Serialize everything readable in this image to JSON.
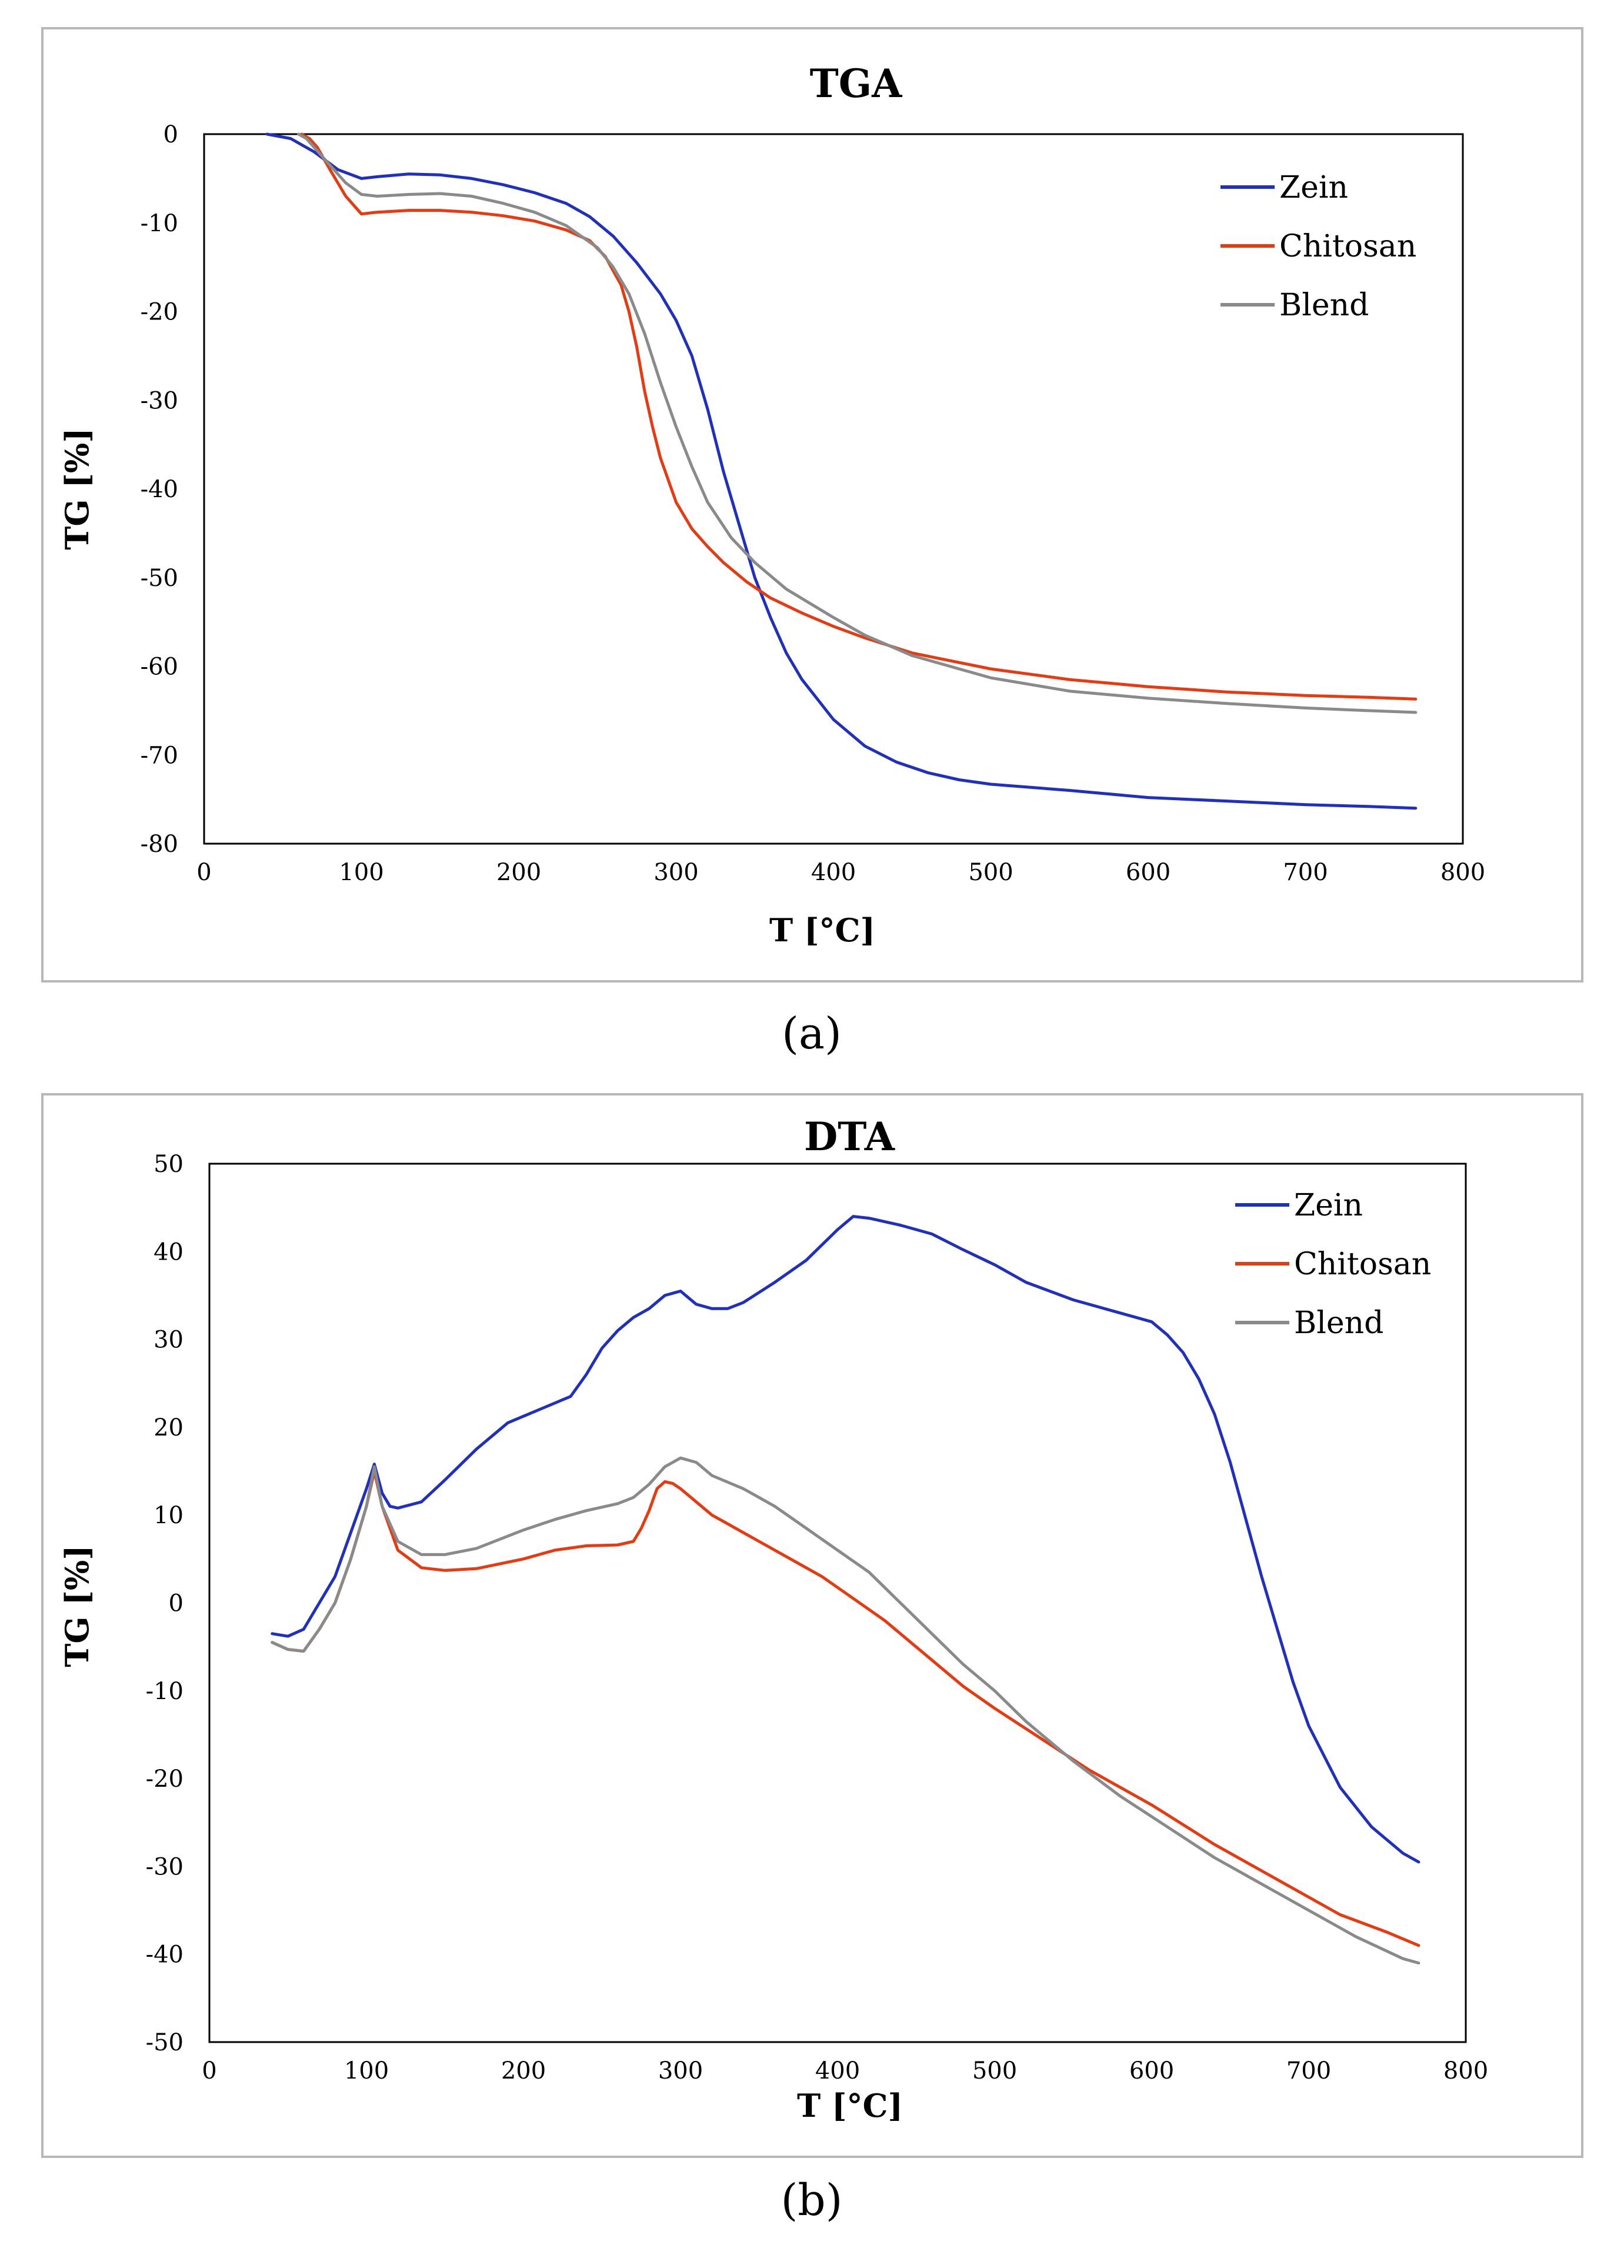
{
  "chart_data": [
    {
      "type": "line",
      "title": "TGA",
      "xlabel": "T [°C]",
      "ylabel": "TG [%]",
      "caption": "(a)",
      "xlim": [
        0,
        800
      ],
      "ylim": [
        -80,
        0
      ],
      "xticks": [
        0,
        100,
        200,
        300,
        400,
        500,
        600,
        700,
        800
      ],
      "yticks": [
        0,
        -10,
        -20,
        -30,
        -40,
        -50,
        -60,
        -70,
        -80
      ],
      "legend_position": "top-right",
      "series": [
        {
          "name": "Zein",
          "color": "#1f2fbf",
          "x": [
            40,
            55,
            70,
            85,
            100,
            110,
            130,
            150,
            170,
            190,
            210,
            230,
            245,
            260,
            275,
            290,
            300,
            310,
            320,
            330,
            340,
            350,
            360,
            370,
            380,
            400,
            420,
            440,
            460,
            480,
            500,
            550,
            600,
            650,
            700,
            740,
            770
          ],
          "y": [
            0,
            -0.5,
            -2,
            -4,
            -5,
            -4.8,
            -4.5,
            -4.6,
            -5,
            -5.7,
            -6.6,
            -7.8,
            -9.3,
            -11.5,
            -14.5,
            -18,
            -21,
            -25,
            -31,
            -38,
            -44,
            -50,
            -54.5,
            -58.5,
            -61.5,
            -66,
            -69,
            -70.8,
            -72,
            -72.8,
            -73.3,
            -74,
            -74.8,
            -75.2,
            -75.6,
            -75.8,
            -76
          ]
        },
        {
          "name": "Chitosan",
          "color": "#e83a10",
          "x": [
            62,
            67,
            72,
            80,
            90,
            100,
            110,
            130,
            150,
            170,
            190,
            210,
            230,
            245,
            255,
            265,
            270,
            275,
            280,
            285,
            290,
            300,
            310,
            320,
            330,
            345,
            360,
            380,
            400,
            420,
            450,
            500,
            550,
            600,
            650,
            700,
            740,
            770
          ],
          "y": [
            0,
            -0.5,
            -1.5,
            -4,
            -7,
            -9,
            -8.8,
            -8.6,
            -8.6,
            -8.8,
            -9.2,
            -9.8,
            -10.8,
            -12,
            -13.8,
            -17,
            -20,
            -24,
            -29,
            -33,
            -36.5,
            -41.5,
            -44.5,
            -46.5,
            -48.3,
            -50.5,
            -52.3,
            -54,
            -55.5,
            -56.8,
            -58.5,
            -60.3,
            -61.5,
            -62.3,
            -62.9,
            -63.3,
            -63.5,
            -63.7
          ]
        },
        {
          "name": "Blend",
          "color": "#8a8a8a",
          "x": [
            60,
            65,
            70,
            80,
            90,
            100,
            110,
            130,
            150,
            170,
            190,
            210,
            230,
            250,
            260,
            270,
            280,
            290,
            300,
            310,
            320,
            335,
            350,
            370,
            400,
            420,
            450,
            500,
            550,
            600,
            650,
            700,
            740,
            770
          ],
          "y": [
            0,
            -0.5,
            -1.5,
            -3.5,
            -5.5,
            -6.8,
            -7,
            -6.8,
            -6.7,
            -7,
            -7.8,
            -8.8,
            -10.3,
            -12.8,
            -15,
            -18,
            -22.5,
            -28,
            -33,
            -37.5,
            -41.5,
            -45.5,
            -48.3,
            -51.3,
            -54.5,
            -56.5,
            -58.8,
            -61.3,
            -62.8,
            -63.6,
            -64.2,
            -64.7,
            -65,
            -65.2
          ]
        }
      ]
    },
    {
      "type": "line",
      "title": "DTA",
      "xlabel": "T [°C]",
      "ylabel": "TG [%]",
      "caption": "(b)",
      "xlim": [
        0,
        800
      ],
      "ylim": [
        -50,
        50
      ],
      "xticks": [
        0,
        100,
        200,
        300,
        400,
        500,
        600,
        700,
        800
      ],
      "yticks": [
        50,
        40,
        30,
        20,
        10,
        0,
        -10,
        -20,
        -30,
        -40,
        -50
      ],
      "legend_position": "top-right",
      "series": [
        {
          "name": "Zein",
          "color": "#1f2fbf",
          "x": [
            40,
            50,
            60,
            70,
            80,
            90,
            100,
            105,
            110,
            115,
            120,
            135,
            150,
            170,
            190,
            210,
            230,
            240,
            250,
            260,
            270,
            280,
            290,
            300,
            310,
            320,
            330,
            340,
            360,
            380,
            400,
            410,
            420,
            440,
            460,
            480,
            500,
            520,
            550,
            580,
            600,
            610,
            620,
            630,
            640,
            650,
            660,
            670,
            680,
            690,
            700,
            720,
            740,
            760,
            770
          ],
          "y": [
            -3.5,
            -3.8,
            -3,
            0,
            3,
            8,
            13,
            15.8,
            12.5,
            11,
            10.8,
            11.5,
            14,
            17.5,
            20.5,
            22,
            23.5,
            26,
            29,
            31,
            32.5,
            33.5,
            35,
            35.5,
            34,
            33.5,
            33.5,
            34.2,
            36.5,
            39,
            42.5,
            44,
            43.8,
            43,
            42,
            40.2,
            38.5,
            36.5,
            34.5,
            33,
            32,
            30.5,
            28.5,
            25.5,
            21.5,
            16,
            9.5,
            3,
            -3,
            -9,
            -14,
            -21,
            -25.5,
            -28.5,
            -29.5
          ]
        },
        {
          "name": "Chitosan",
          "color": "#e83a10",
          "x": [
            40,
            50,
            60,
            70,
            80,
            90,
            100,
            105,
            110,
            120,
            135,
            150,
            170,
            200,
            220,
            240,
            260,
            270,
            275,
            280,
            285,
            290,
            295,
            300,
            310,
            320,
            330,
            350,
            370,
            390,
            410,
            430,
            450,
            480,
            500,
            530,
            560,
            600,
            640,
            680,
            720,
            750,
            770
          ],
          "y": [
            -4.5,
            -5.3,
            -5.5,
            -3,
            0,
            5,
            11,
            15,
            11,
            6,
            4,
            3.7,
            3.9,
            5,
            6,
            6.5,
            6.6,
            7,
            8.5,
            10.5,
            13,
            13.8,
            13.6,
            13,
            11.5,
            10,
            9,
            7,
            5,
            3,
            0.5,
            -2,
            -5,
            -9.5,
            -12,
            -15.5,
            -19,
            -23,
            -27.5,
            -31.5,
            -35.5,
            -37.5,
            -39
          ]
        },
        {
          "name": "Blend",
          "color": "#8a8a8a",
          "x": [
            40,
            50,
            60,
            70,
            80,
            90,
            100,
            105,
            110,
            120,
            135,
            150,
            170,
            200,
            220,
            240,
            260,
            270,
            280,
            290,
            300,
            310,
            320,
            340,
            360,
            380,
            400,
            420,
            440,
            460,
            480,
            500,
            520,
            550,
            580,
            610,
            640,
            670,
            700,
            730,
            760,
            770
          ],
          "y": [
            -4.5,
            -5.3,
            -5.5,
            -3,
            0,
            5,
            11,
            15.5,
            11,
            7,
            5.5,
            5.5,
            6.2,
            8.3,
            9.5,
            10.5,
            11.3,
            12,
            13.5,
            15.5,
            16.5,
            16,
            14.5,
            13,
            11,
            8.5,
            6,
            3.5,
            0,
            -3.5,
            -7,
            -10,
            -13.5,
            -18,
            -22,
            -25.5,
            -29,
            -32,
            -35,
            -38,
            -40.5,
            -41
          ]
        }
      ]
    }
  ]
}
